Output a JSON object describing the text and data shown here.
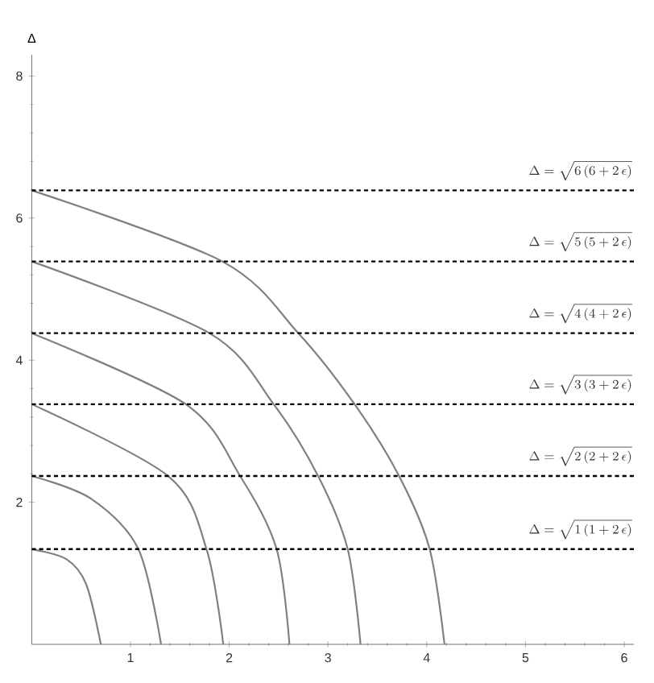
{
  "chart_data": {
    "type": "line",
    "ylabel": "Δ",
    "xlim": [
      0,
      6.1
    ],
    "ylim": [
      0,
      8.3
    ],
    "xticks": [
      1,
      2,
      3,
      4,
      5,
      6
    ],
    "yticks": [
      2,
      4,
      6,
      8
    ],
    "series": [
      {
        "color": "#808080",
        "x": [
          0,
          0.35,
          0.55,
          0.7
        ],
        "values": [
          1.34,
          1.2,
          0.85,
          0
        ]
      },
      {
        "color": "#808080",
        "x": [
          0,
          0.6,
          1.08,
          1.31
        ],
        "values": [
          2.37,
          2.05,
          1.34,
          0
        ]
      },
      {
        "color": "#808080",
        "x": [
          0,
          1.38,
          1.77,
          1.94
        ],
        "values": [
          3.38,
          2.37,
          1.34,
          0
        ]
      },
      {
        "color": "#808080",
        "x": [
          0,
          1.56,
          2.11,
          2.48,
          2.61
        ],
        "values": [
          4.38,
          3.38,
          2.37,
          1.34,
          0
        ]
      },
      {
        "color": "#808080",
        "x": [
          0,
          1.8,
          2.45,
          2.9,
          3.2,
          3.33
        ],
        "values": [
          5.39,
          4.38,
          3.38,
          2.37,
          1.34,
          0
        ]
      },
      {
        "color": "#808080",
        "x": [
          0,
          1.93,
          2.7,
          3.27,
          3.72,
          4.03,
          4.18
        ],
        "values": [
          6.39,
          5.39,
          4.38,
          3.38,
          2.37,
          1.34,
          0
        ]
      }
    ],
    "ref_lines": [
      {
        "axis": "y",
        "value": 1.34,
        "label": "\\Delta = \\sqrt{1\\,(1+2\\,\\epsilon)}",
        "color": "#000000",
        "line_style": "dashed"
      },
      {
        "axis": "y",
        "value": 2.37,
        "label": "\\Delta = \\sqrt{2\\,(2+2\\,\\epsilon)}",
        "color": "#000000",
        "line_style": "dashed"
      },
      {
        "axis": "y",
        "value": 3.38,
        "label": "\\Delta = \\sqrt{3\\,(3+2\\,\\epsilon)}",
        "color": "#000000",
        "line_style": "dashed"
      },
      {
        "axis": "y",
        "value": 4.38,
        "label": "\\Delta = \\sqrt{4\\,(4+2\\,\\epsilon)}",
        "color": "#000000",
        "line_style": "dashed"
      },
      {
        "axis": "y",
        "value": 5.39,
        "label": "\\Delta = \\sqrt{5\\,(5+2\\,\\epsilon)}",
        "color": "#000000",
        "line_style": "dashed"
      },
      {
        "axis": "y",
        "value": 6.39,
        "label": "\\Delta = \\sqrt{6\\,(6+2\\,\\epsilon)}",
        "color": "#000000",
        "line_style": "dashed"
      }
    ]
  }
}
